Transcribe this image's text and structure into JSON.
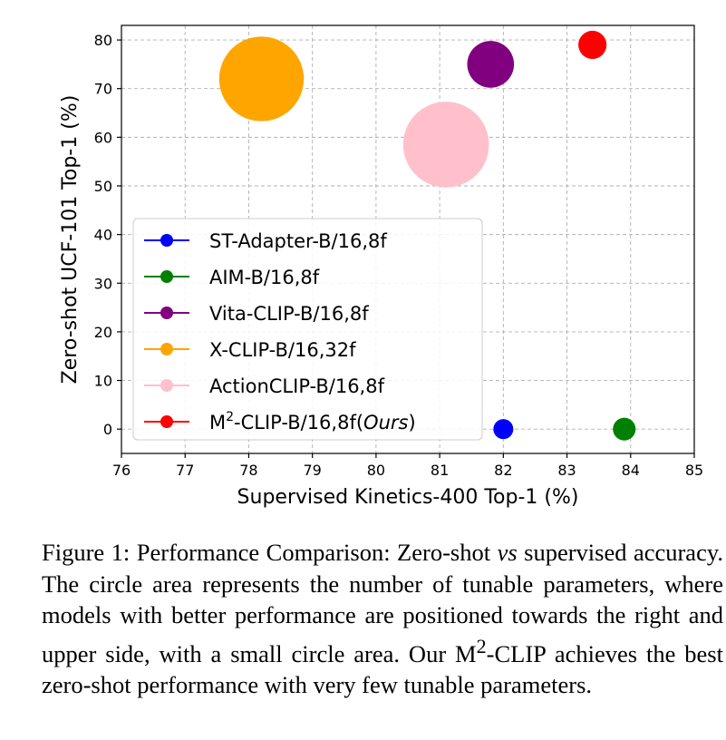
{
  "chart_data": {
    "type": "scatter",
    "xlabel": "Supervised Kinetics-400 Top-1 (%)",
    "ylabel": "Zero-shot UCF-101 Top-1 (%)",
    "xlim": [
      76,
      85
    ],
    "ylim": [
      -5,
      83
    ],
    "xticks": [
      76,
      77,
      78,
      79,
      80,
      81,
      82,
      83,
      84,
      85
    ],
    "yticks": [
      0,
      10,
      20,
      30,
      40,
      50,
      60,
      70,
      80
    ],
    "grid": true,
    "legend_position": "left",
    "series": [
      {
        "name": "ST-Adapter-B/16,8f",
        "color": "#0000ff",
        "x": 82.0,
        "y": 0.0,
        "bubble_size": 1.0
      },
      {
        "name": "AIM-B/16,8f",
        "color": "#008000",
        "x": 83.9,
        "y": 0.0,
        "bubble_size": 1.3
      },
      {
        "name": "Vita-CLIP-B/16,8f",
        "color": "#800080",
        "x": 81.8,
        "y": 75.0,
        "bubble_size": 5.5
      },
      {
        "name": "X-CLIP-B/16,32f",
        "color": "#ffa500",
        "x": 78.2,
        "y": 72.0,
        "bubble_size": 18.0
      },
      {
        "name": "ActionCLIP-B/16,8f",
        "color": "#ffc0cb",
        "x": 81.1,
        "y": 58.5,
        "bubble_size": 18.5
      },
      {
        "name_prefix": "M",
        "name_sup": "2",
        "name_mid": "-CLIP-B/16,8f(",
        "name_italic": "Ours",
        "name_suffix": ")",
        "color": "#ff0000",
        "x": 83.4,
        "y": 79.0,
        "bubble_size": 2.0
      }
    ]
  },
  "caption": {
    "label": "Figure 1:",
    "text_1": " Performance Comparison: Zero-shot ",
    "vs": "vs",
    "text_2": " supervised accuracy. The circle area represents the number of tunable parameters, where models with better performance are positioned towards the right and upper side, with a small circle area. Our M",
    "sup": "2",
    "text_3": "-CLIP achieves the best zero-shot performance with very few tunable parameters."
  }
}
